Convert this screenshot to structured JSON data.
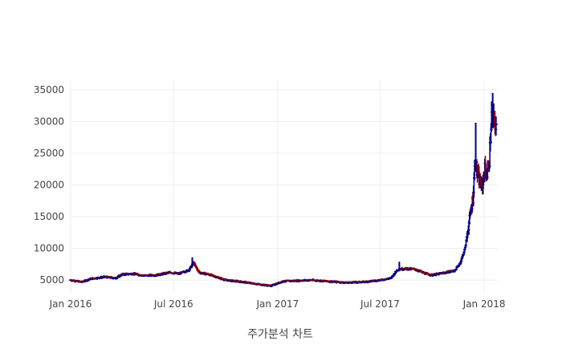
{
  "chart_data": {
    "type": "ohlc",
    "xlabel": "주가분석 차트",
    "ylabel": "",
    "xlim": [
      "2016-01-01",
      "2018-01-25"
    ],
    "ylim": [
      3000,
      36500
    ],
    "yticks": [
      5000,
      10000,
      15000,
      20000,
      25000,
      30000,
      35000
    ],
    "xticks": [
      {
        "date": "2016-01-01",
        "label": "Jan 2016"
      },
      {
        "date": "2016-07-01",
        "label": "Jul 2016"
      },
      {
        "date": "2017-01-01",
        "label": "Jan 2017"
      },
      {
        "date": "2017-07-01",
        "label": "Jul 2017"
      },
      {
        "date": "2018-01-01",
        "label": "Jan 2018"
      }
    ],
    "colors": {
      "increasing": "#00008b",
      "decreasing": "#8b0000"
    },
    "grid": true,
    "series": [
      {
        "anchors": [
          [
            "2016-01-01",
            5000
          ],
          [
            "2016-01-20",
            4700
          ],
          [
            "2016-02-05",
            5200
          ],
          [
            "2016-03-01",
            5500
          ],
          [
            "2016-03-20",
            5300
          ],
          [
            "2016-04-01",
            5900
          ],
          [
            "2016-04-20",
            6000
          ],
          [
            "2016-05-10",
            5700
          ],
          [
            "2016-06-01",
            5800
          ],
          [
            "2016-06-25",
            6200
          ],
          [
            "2016-07-10",
            6000
          ],
          [
            "2016-07-28",
            6600
          ],
          [
            "2016-08-05",
            7700
          ],
          [
            "2016-08-15",
            6200
          ],
          [
            "2016-09-01",
            5900
          ],
          [
            "2016-10-01",
            5000
          ],
          [
            "2016-11-01",
            4700
          ],
          [
            "2016-12-01",
            4300
          ],
          [
            "2016-12-20",
            4100
          ],
          [
            "2017-01-10",
            4800
          ],
          [
            "2017-02-01",
            4900
          ],
          [
            "2017-03-01",
            5000
          ],
          [
            "2017-04-01",
            4800
          ],
          [
            "2017-05-01",
            4600
          ],
          [
            "2017-06-01",
            4700
          ],
          [
            "2017-07-01",
            5000
          ],
          [
            "2017-07-20",
            5300
          ],
          [
            "2017-08-01",
            6700
          ],
          [
            "2017-08-15",
            6800
          ],
          [
            "2017-09-01",
            6700
          ],
          [
            "2017-09-20",
            6000
          ],
          [
            "2017-10-01",
            5800
          ],
          [
            "2017-10-20",
            6100
          ],
          [
            "2017-11-10",
            6500
          ],
          [
            "2017-11-20",
            7800
          ],
          [
            "2017-11-28",
            10000
          ],
          [
            "2017-12-05",
            14000
          ],
          [
            "2017-12-12",
            18000
          ],
          [
            "2017-12-16",
            24000
          ],
          [
            "2017-12-19",
            22000
          ],
          [
            "2017-12-24",
            20500
          ],
          [
            "2017-12-28",
            19500
          ],
          [
            "2018-01-02",
            22500
          ],
          [
            "2018-01-06",
            21500
          ],
          [
            "2018-01-10",
            24000
          ],
          [
            "2018-01-14",
            31000
          ],
          [
            "2018-01-18",
            30000
          ],
          [
            "2018-01-22",
            29500
          ]
        ],
        "highlights": [
          {
            "date": "2016-08-03",
            "high": 8600
          },
          {
            "date": "2017-08-04",
            "high": 7900
          },
          {
            "date": "2017-12-17",
            "high": 29800
          },
          {
            "date": "2018-01-16",
            "high": 34500
          }
        ]
      }
    ]
  }
}
